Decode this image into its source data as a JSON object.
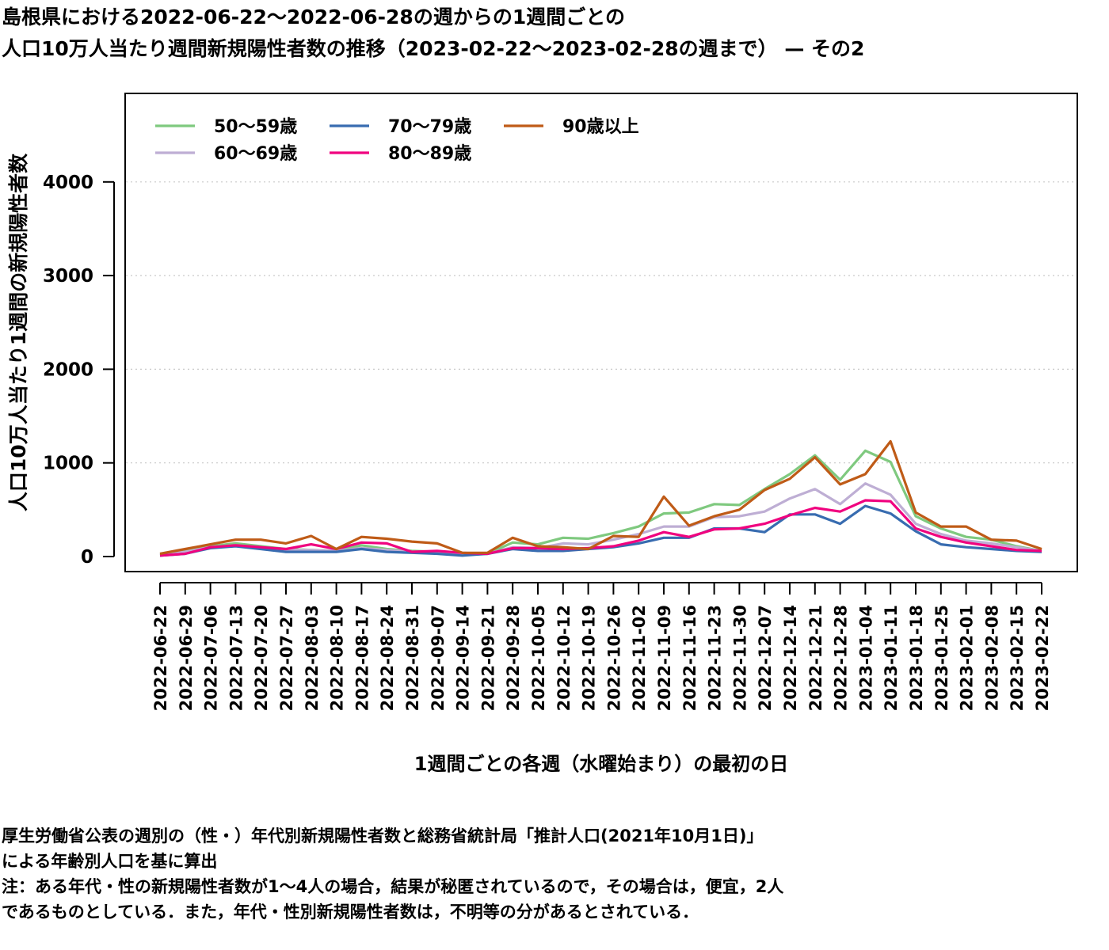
{
  "title": {
    "line1": "島根県における2022-06-22〜2022-06-28の週からの1週間ごとの",
    "line2": "人口10万人当たり週間新規陽性者数の推移（2023-02-22〜2023-02-28の週まで） — その2"
  },
  "notes": {
    "line1": "厚生労働省公表の週別の（性・）年代別新規陽性者数と総務省統計局「推計人口(2021年10月1日)」",
    "line2": "による年齢別人口を基に算出",
    "line3": "注：ある年代・性の新規陽性者数が1〜4人の場合，結果が秘匿されているので，その場合は，便宜，2人",
    "line4": "であるものとしている．また，年代・性別新規陽性者数は，不明等の分があるとされている．"
  },
  "chart_data": {
    "type": "line",
    "xlabel": "1週間ごとの各週（水曜始まり）の最初の日",
    "ylabel": "人口10万人当たり1週間の新規陽性者数",
    "ylim": [
      -100,
      4950
    ],
    "yticks": [
      0,
      1000,
      2000,
      3000,
      4000
    ],
    "grid": "horizontal dotted",
    "legend": "top-left",
    "x": [
      "2022-06-22",
      "2022-06-29",
      "2022-07-06",
      "2022-07-13",
      "2022-07-20",
      "2022-07-27",
      "2022-08-03",
      "2022-08-10",
      "2022-08-17",
      "2022-08-24",
      "2022-08-31",
      "2022-09-07",
      "2022-09-14",
      "2022-09-21",
      "2022-09-28",
      "2022-10-05",
      "2022-10-12",
      "2022-10-19",
      "2022-10-26",
      "2022-11-02",
      "2022-11-09",
      "2022-11-16",
      "2022-11-23",
      "2022-11-30",
      "2022-12-07",
      "2022-12-14",
      "2022-12-21",
      "2022-12-28",
      "2023-01-04",
      "2023-01-11",
      "2023-01-18",
      "2023-01-25",
      "2023-02-01",
      "2023-02-08",
      "2023-02-15",
      "2023-02-22"
    ],
    "series": [
      {
        "name": "50〜59歳",
        "color": "#7fc97f",
        "values": [
          20,
          60,
          110,
          140,
          110,
          80,
          70,
          60,
          120,
          80,
          60,
          50,
          30,
          30,
          150,
          130,
          200,
          190,
          250,
          320,
          460,
          470,
          560,
          550,
          720,
          880,
          1080,
          820,
          1130,
          1010,
          430,
          300,
          210,
          180,
          110,
          60
        ]
      },
      {
        "name": "60〜69歳",
        "color": "#beaed4",
        "values": [
          20,
          50,
          100,
          120,
          90,
          70,
          70,
          60,
          90,
          70,
          50,
          40,
          20,
          30,
          100,
          90,
          140,
          130,
          180,
          240,
          320,
          320,
          420,
          430,
          480,
          620,
          720,
          560,
          780,
          660,
          350,
          240,
          170,
          140,
          100,
          60
        ]
      },
      {
        "name": "70〜79歳",
        "color": "#386cb0",
        "values": [
          10,
          30,
          90,
          110,
          80,
          50,
          50,
          50,
          80,
          50,
          40,
          30,
          10,
          30,
          80,
          60,
          60,
          80,
          100,
          140,
          200,
          200,
          300,
          300,
          260,
          450,
          450,
          350,
          540,
          460,
          270,
          130,
          100,
          80,
          60,
          50
        ]
      },
      {
        "name": "80〜89歳",
        "color": "#f0027f",
        "values": [
          10,
          30,
          100,
          120,
          100,
          80,
          130,
          80,
          150,
          140,
          50,
          60,
          40,
          30,
          90,
          90,
          80,
          90,
          110,
          170,
          260,
          210,
          290,
          300,
          350,
          440,
          520,
          480,
          600,
          590,
          300,
          210,
          150,
          110,
          70,
          60
        ]
      },
      {
        "name": "90歳以上",
        "color": "#bf5b17",
        "values": [
          30,
          80,
          130,
          180,
          180,
          140,
          220,
          80,
          210,
          190,
          160,
          140,
          40,
          40,
          200,
          110,
          100,
          80,
          220,
          210,
          640,
          330,
          430,
          500,
          710,
          830,
          1060,
          770,
          880,
          1230,
          470,
          320,
          320,
          180,
          170,
          80
        ]
      }
    ]
  }
}
